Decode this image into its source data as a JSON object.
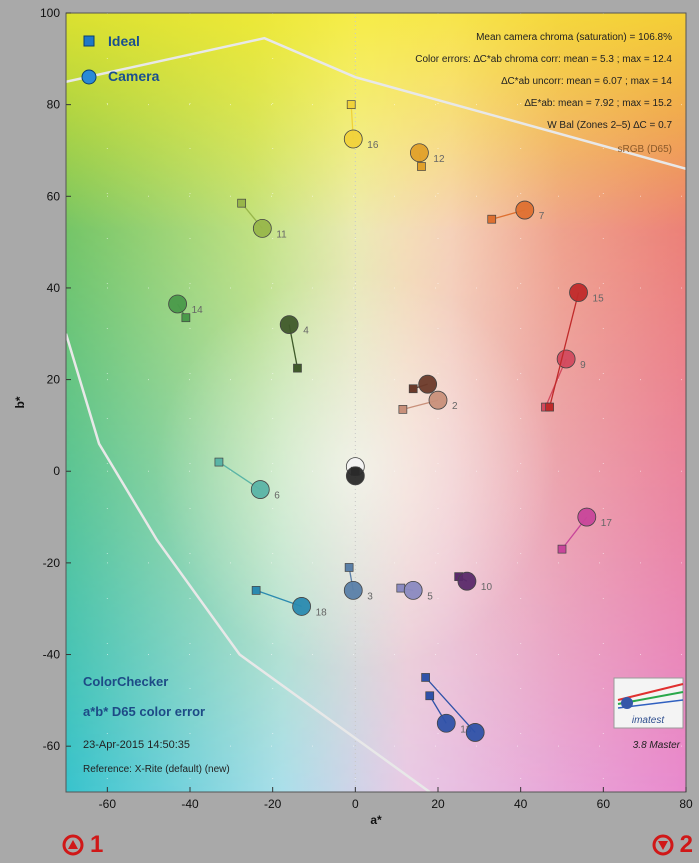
{
  "chart_data": {
    "type": "scatter",
    "title": "",
    "xlabel": "a*",
    "ylabel": "b*",
    "xlim": [
      -70,
      80
    ],
    "ylim": [
      -70,
      100
    ],
    "xticks": [
      -60,
      -40,
      -20,
      0,
      20,
      40,
      60,
      80
    ],
    "yticks": [
      -60,
      -40,
      -20,
      0,
      20,
      40,
      60,
      80,
      100
    ],
    "grid": true,
    "legend": {
      "position": "top-left",
      "entries": [
        {
          "name": "Ideal",
          "marker": "square",
          "color": "#1e78c8"
        },
        {
          "name": "Camera",
          "marker": "circle",
          "color": "#2a8ad6"
        }
      ]
    },
    "stats_lines": [
      "Mean camera chroma (saturation) = 106.8%",
      "Color errors: ∆C*ab chroma corr:  mean = 5.3 ;  max = 12.4",
      "∆C*ab uncorr:  mean = 6.07 ;  max = 14",
      "∆E*ab:  mean = 7.92 ;  max = 15.2",
      "W Bal (Zones 2–5) ∆C = 0.7",
      "sRGB (D65)"
    ],
    "footer": {
      "product": "ColorChecker",
      "subtitle": "a*b* D65 color error",
      "timestamp": "23-Apr-2015 14:50:35",
      "reference": "Reference: X-Rite (default) (new)",
      "version": "3.8  Master",
      "logo_text": "imatest"
    },
    "gamut_boundary": [
      [
        [
          -70,
          85
        ],
        [
          -22,
          94.5
        ],
        [
          0,
          86
        ],
        [
          80,
          66
        ]
      ],
      [
        [
          -70,
          30
        ],
        [
          -62,
          6
        ],
        [
          -48,
          -15
        ],
        [
          -28,
          -40
        ],
        [
          18,
          -70
        ]
      ]
    ],
    "patches": [
      {
        "label": "2",
        "ideal": [
          11.5,
          13.5
        ],
        "camera": [
          20,
          15.5
        ],
        "color": "#c8907a"
      },
      {
        "label": "",
        "ideal": [
          14,
          18
        ],
        "camera": [
          17.5,
          19
        ],
        "color": "#6b3a2a"
      },
      {
        "label": "3",
        "ideal": [
          -1.5,
          -21
        ],
        "camera": [
          -0.5,
          -26
        ],
        "color": "#5a80a8"
      },
      {
        "label": "4",
        "ideal": [
          -14,
          22.5
        ],
        "camera": [
          -16,
          32
        ],
        "color": "#3f5a2a"
      },
      {
        "label": "5",
        "ideal": [
          11,
          -25.5
        ],
        "camera": [
          14,
          -26
        ],
        "color": "#8a8ac0"
      },
      {
        "label": "6",
        "ideal": [
          -33,
          2
        ],
        "camera": [
          -23,
          -4
        ],
        "color": "#5ab4a6"
      },
      {
        "label": "7",
        "ideal": [
          33,
          55
        ],
        "camera": [
          41,
          57
        ],
        "color": "#de7030"
      },
      {
        "label": "9",
        "ideal": [
          46,
          14
        ],
        "camera": [
          51,
          24.5
        ],
        "color": "#d24a5e"
      },
      {
        "label": "10",
        "ideal": [
          25,
          -23
        ],
        "camera": [
          27,
          -24
        ],
        "color": "#5a2a6a"
      },
      {
        "label": "11",
        "ideal": [
          -27.5,
          58.5
        ],
        "camera": [
          -22.5,
          53
        ],
        "color": "#98b64a"
      },
      {
        "label": "12",
        "ideal": [
          16,
          66.5
        ],
        "camera": [
          15.5,
          69.5
        ],
        "color": "#e0a02a"
      },
      {
        "label": "13",
        "ideal": [
          18,
          -49
        ],
        "camera": [
          22,
          -55
        ],
        "color": "#2f52a8"
      },
      {
        "label": "",
        "ideal": [
          17,
          -45
        ],
        "camera": [
          29,
          -57
        ],
        "color": "#2f52a8"
      },
      {
        "label": "14",
        "ideal": [
          -41,
          33.5
        ],
        "camera": [
          -43,
          36.5
        ],
        "color": "#4a9a4a"
      },
      {
        "label": "15",
        "ideal": [
          47,
          14
        ],
        "camera": [
          54,
          39
        ],
        "color": "#c02a2a"
      },
      {
        "label": "16",
        "ideal": [
          -1,
          80
        ],
        "camera": [
          -0.5,
          72.5
        ],
        "color": "#f0d23a"
      },
      {
        "label": "17",
        "ideal": [
          50,
          -17
        ],
        "camera": [
          56,
          -10
        ],
        "color": "#c8469a"
      },
      {
        "label": "18",
        "ideal": [
          -24,
          -26
        ],
        "camera": [
          -13,
          -29.5
        ],
        "color": "#2a8ab0"
      },
      {
        "label": "",
        "ideal": [
          0,
          0
        ],
        "camera": [
          0,
          1
        ],
        "color": "#f2f2f2"
      },
      {
        "label": "",
        "ideal": [
          0,
          0
        ],
        "camera": [
          0,
          -1
        ],
        "color": "#2a2a2a"
      }
    ]
  },
  "navigation": {
    "prev_label": "1",
    "next_label": "2"
  }
}
